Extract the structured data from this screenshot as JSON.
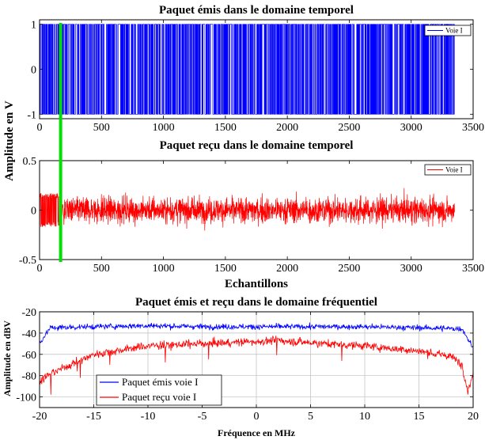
{
  "chart_data": [
    {
      "type": "line",
      "title": "Paquet émis dans le domaine temporel",
      "xlabel": "",
      "ylabel": "Amplitude en V",
      "xlim": [
        0,
        3500
      ],
      "ylim": [
        -1.1,
        1.1
      ],
      "xticks": [
        "0",
        "500",
        "1000",
        "1500",
        "2000",
        "2500",
        "3000",
        "3500"
      ],
      "yticks": [
        "1",
        "0",
        "-1"
      ],
      "grid": false,
      "legend_position": "top-right",
      "series": [
        {
          "name": "Voie I",
          "color": "#0000ff",
          "x_range": [
            0,
            3350
          ],
          "amplitude_range": [
            -1,
            1
          ],
          "signal": "binary-valued square waveform switching between -1 and 1"
        }
      ],
      "marker_line": {
        "x": 170,
        "color": "#00e000"
      }
    },
    {
      "type": "line",
      "title": "Paquet reçu dans le domaine temporel",
      "xlabel": "Echantillons",
      "ylabel": "",
      "xlim": [
        0,
        3500
      ],
      "ylim": [
        -0.5,
        0.5
      ],
      "xticks": [
        "0",
        "500",
        "1000",
        "1500",
        "2000",
        "2500",
        "3000",
        "3500"
      ],
      "yticks": [
        "0.5",
        "0",
        "-0.5"
      ],
      "grid": false,
      "legend_position": "top-right",
      "series": [
        {
          "name": "Voie I",
          "color": "#ff0000",
          "x_range": [
            0,
            3350
          ],
          "amplitude_range": [
            -0.3,
            0.3
          ],
          "signal": "noisy received waveform; about ±0.17 before sample 170, about ±0.3 after"
        }
      ],
      "marker_line": {
        "x": 170,
        "color": "#00e000"
      }
    },
    {
      "type": "line",
      "title": "Paquet émis et reçu dans le domaine fréquentiel",
      "xlabel": "Fréquence en MHz",
      "ylabel": "Amplitude en dBV",
      "xlim": [
        -20,
        20
      ],
      "ylim": [
        -110,
        -20
      ],
      "xticks": [
        "-20",
        "-15",
        "-10",
        "-5",
        "0",
        "5",
        "10",
        "15",
        "20"
      ],
      "yticks": [
        "-20",
        "-40",
        "-60",
        "-80",
        "-100"
      ],
      "grid": true,
      "legend_position": "bottom-left",
      "series": [
        {
          "name": "Paquet émis voie I",
          "color": "#0000ff",
          "x": [
            -20,
            -19.5,
            -19,
            -15,
            -10,
            -5,
            0,
            5,
            10,
            15,
            19,
            19.5,
            20
          ],
          "y": [
            -50,
            -42,
            -35,
            -34,
            -33,
            -34,
            -34,
            -34,
            -34,
            -35,
            -36,
            -45,
            -54
          ]
        },
        {
          "name": "Paquet reçu voie I",
          "color": "#ff0000",
          "x": [
            -20,
            -19,
            -15,
            -10,
            -5,
            0,
            2,
            5,
            10,
            15,
            18,
            19,
            19.5,
            20
          ],
          "y": [
            -85,
            -78,
            -60,
            -52,
            -50,
            -48,
            -47,
            -49,
            -52,
            -57,
            -62,
            -70,
            -95,
            -78
          ]
        }
      ]
    }
  ]
}
